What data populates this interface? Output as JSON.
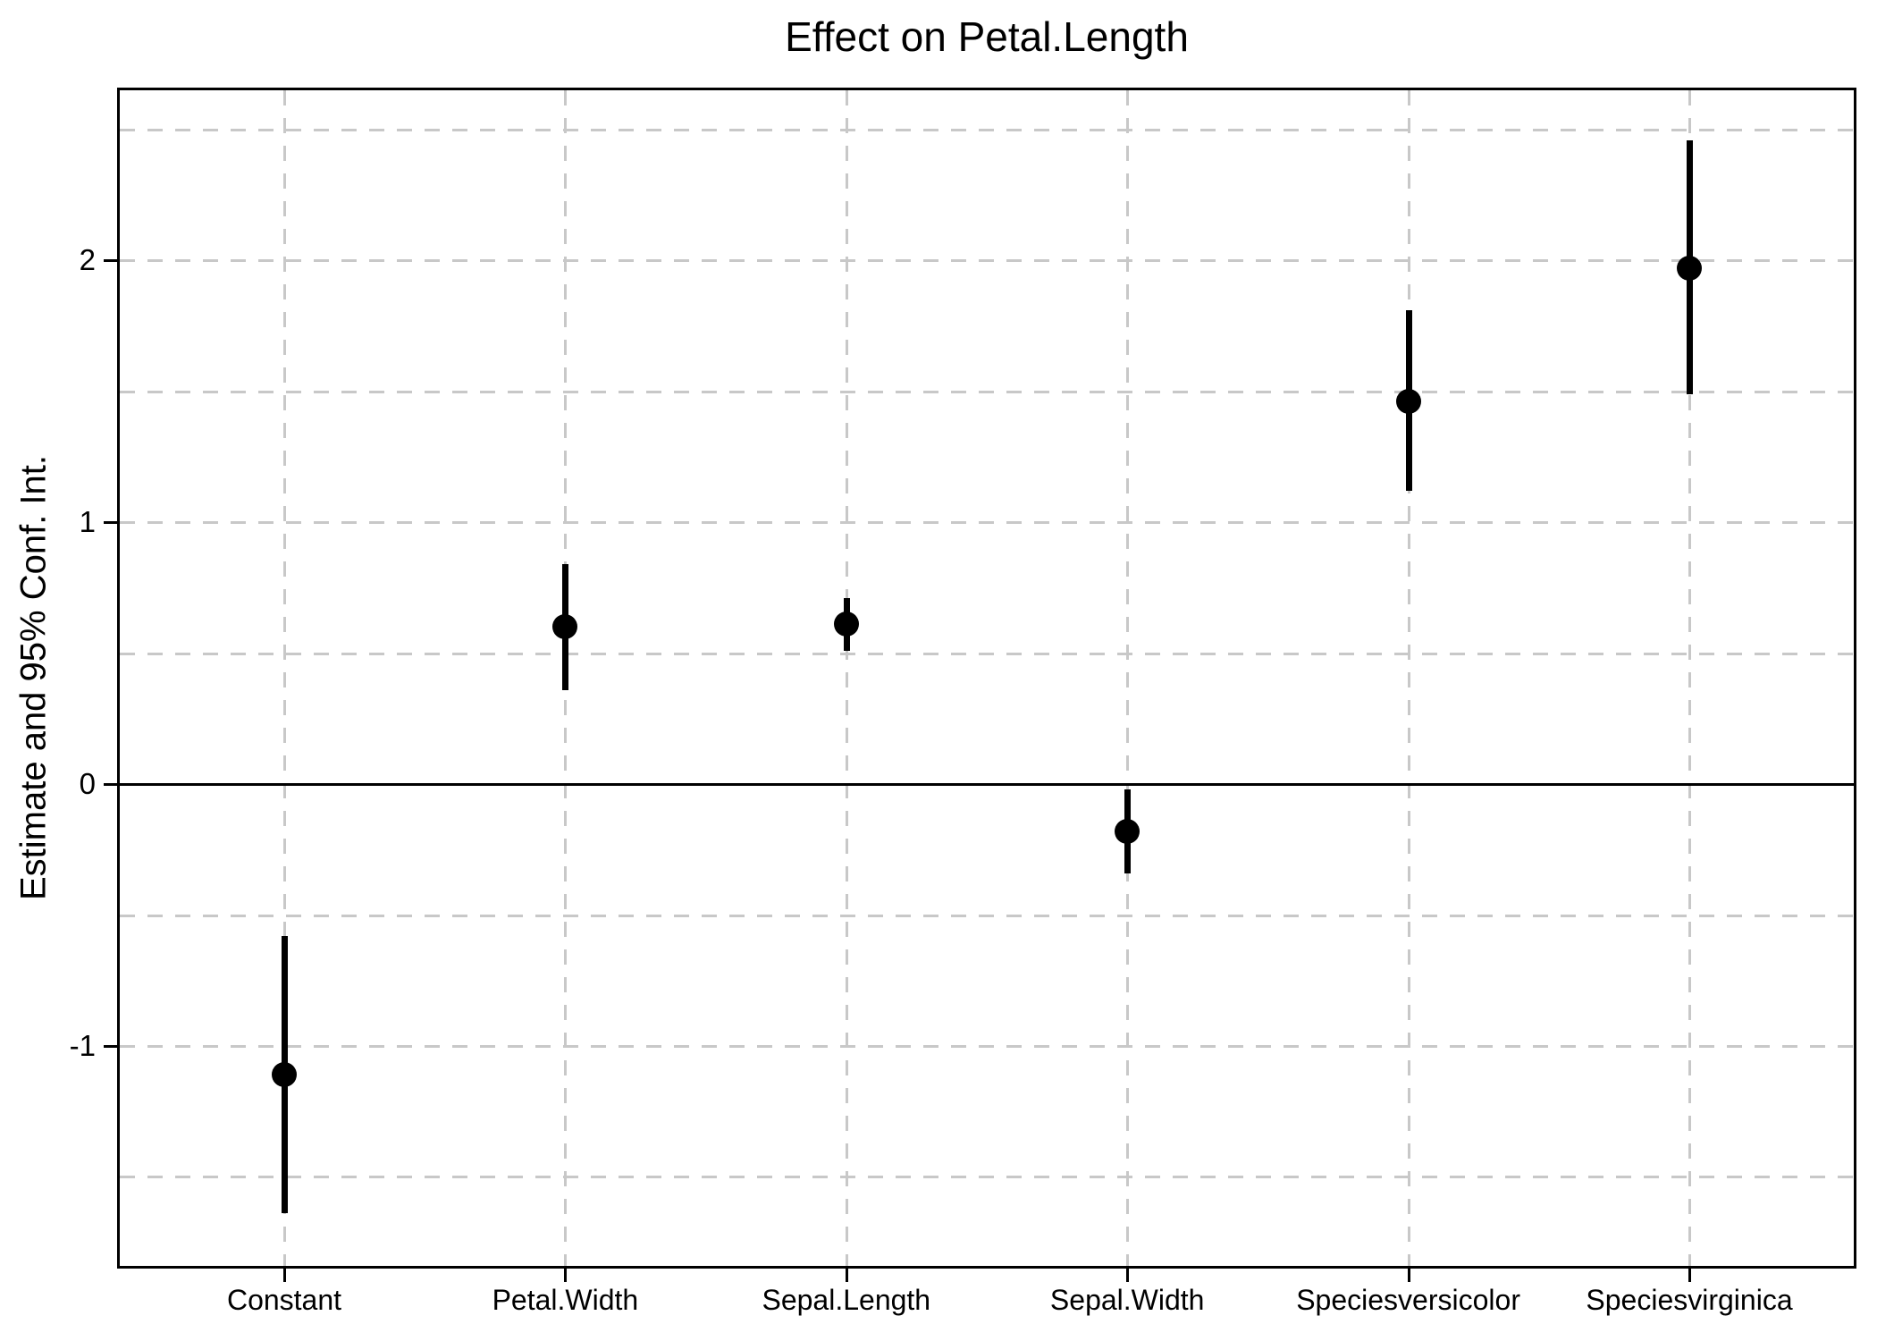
{
  "chart_data": {
    "type": "scatter",
    "subtype": "coefficient-plot-with-95-percent-ci-error-bars",
    "title": "Effect on Petal.Length",
    "xlabel": "",
    "ylabel": "Estimate and 95% Conf. Int.",
    "categories": [
      "Constant",
      "Petal.Width",
      "Sepal.Length",
      "Sepal.Width",
      "Speciesversicolor",
      "Speciesvirginica"
    ],
    "series": [
      {
        "name": "estimate",
        "values": [
          -1.11,
          0.6,
          0.61,
          -0.18,
          1.46,
          1.97
        ],
        "ci_lower": [
          -1.64,
          0.36,
          0.51,
          -0.34,
          1.12,
          1.49
        ],
        "ci_upper": [
          -0.58,
          0.84,
          0.71,
          -0.02,
          1.81,
          2.46
        ]
      }
    ],
    "y_ticks": [
      -1,
      0,
      1,
      2
    ],
    "ylim": [
      -1.85,
      2.66
    ],
    "minor_grid_step": 0.5,
    "zero_reference_line": 0,
    "legend": "none",
    "grid": {
      "horizontal": "dashed gray every 0.5",
      "vertical": "dashed gray at each category"
    },
    "colors": {
      "point": "#000000",
      "error_bar": "#000000",
      "zero_line": "#000000",
      "grid": "#c8c8c8",
      "axis": "#000000",
      "text": "#000000",
      "background": "#ffffff"
    }
  }
}
